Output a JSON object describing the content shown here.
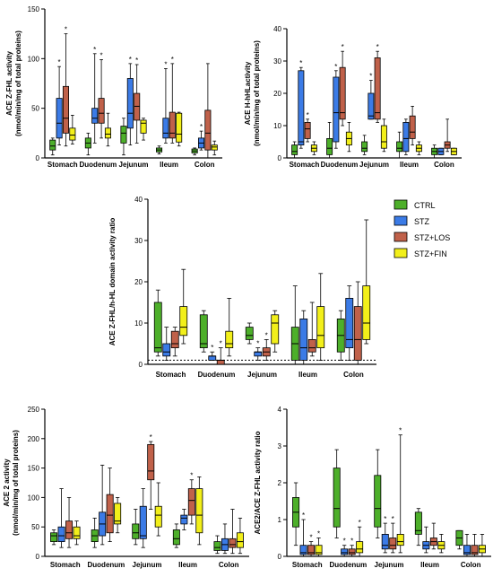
{
  "colors": {
    "CTRL": "#4daf2a",
    "STZ": "#3b7be6",
    "STZ+LOS": "#c0614a",
    "STZ+FIN": "#f2ef1a",
    "axis": "#000000",
    "star": "#000000"
  },
  "legend": {
    "entries": [
      {
        "name": "CTRL",
        "color": "#4daf2a"
      },
      {
        "name": "STZ",
        "color": "#3b7be6"
      },
      {
        "name": "STZ+LOS",
        "color": "#c0614a"
      },
      {
        "name": "STZ+FIN",
        "color": "#f2ef1a"
      }
    ]
  },
  "chart_data": [
    {
      "type": "boxplot",
      "ylabel": "ACE Z-FHL activity\n(nmol/min/mg of total proteins)",
      "ylim": [
        0,
        150
      ],
      "yticks": [
        0,
        50,
        100,
        150
      ],
      "categories": [
        "Stomach",
        "Duodenum",
        "Jejunum",
        "Ileum",
        "Colon"
      ],
      "series": [
        {
          "name": "CTRL",
          "boxes": [
            [
              3,
              8,
              12,
              18,
              20
            ],
            [
              3,
              10,
              15,
              20,
              25
            ],
            [
              3,
              15,
              25,
              32,
              40
            ],
            [
              4,
              6,
              8,
              10,
              12
            ],
            [
              3,
              5,
              7,
              9,
              10
            ]
          ]
        },
        {
          "name": "STZ",
          "boxes": [
            [
              13,
              20,
              35,
              60,
              92
            ],
            [
              15,
              35,
              40,
              50,
              105
            ],
            [
              13,
              30,
              45,
              80,
              95
            ],
            [
              15,
              20,
              25,
              40,
              90
            ],
            [
              8,
              10,
              15,
              20,
              27
            ]
          ]
        },
        {
          "name": "STZ+LOS",
          "boxes": [
            [
              12,
              25,
              40,
              72,
              125
            ],
            [
              20,
              35,
              45,
              60,
              99
            ],
            [
              15,
              38,
              52,
              65,
              94
            ],
            [
              15,
              20,
              25,
              46,
              95
            ],
            [
              0,
              8,
              25,
              48,
              95
            ]
          ]
        },
        {
          "name": "STZ+FIN",
          "boxes": [
            [
              14,
              18,
              23,
              30,
              43
            ],
            [
              12,
              20,
              24,
              30,
              45
            ],
            [
              18,
              25,
              35,
              38,
              40
            ],
            [
              12,
              16,
              24,
              45,
              46
            ],
            [
              3,
              8,
              11,
              13,
              17
            ]
          ]
        }
      ],
      "significance": [
        {
          "category": "Stomach",
          "series": "STZ"
        },
        {
          "category": "Stomach",
          "series": "STZ+LOS"
        },
        {
          "category": "Duodenum",
          "series": "STZ"
        },
        {
          "category": "Duodenum",
          "series": "STZ+LOS"
        },
        {
          "category": "Jejunum",
          "series": "STZ"
        },
        {
          "category": "Jejunum",
          "series": "STZ+LOS"
        },
        {
          "category": "Ileum",
          "series": "STZ"
        },
        {
          "category": "Ileum",
          "series": "STZ+LOS"
        },
        {
          "category": "Colon",
          "series": "STZ"
        }
      ]
    },
    {
      "type": "boxplot",
      "ylabel": "ACE H-hHLactivity\n(nmol/min/mg of total proteins)",
      "ylim": [
        0,
        40
      ],
      "yticks": [
        0,
        10,
        20,
        30,
        40
      ],
      "categories": [
        "Stomach",
        "Duodenum",
        "Jejunum",
        "Ileum",
        "Colon"
      ],
      "series": [
        {
          "name": "CTRL",
          "boxes": [
            [
              0,
              1,
              2,
              4,
              5
            ],
            [
              0,
              1,
              3,
              6,
              11
            ],
            [
              1,
              2,
              3,
              5,
              7
            ],
            [
              0,
              2,
              3,
              5,
              8
            ],
            [
              0,
              1,
              2,
              3,
              4
            ]
          ]
        },
        {
          "name": "STZ",
          "boxes": [
            [
              3,
              4,
              5,
              27,
              28
            ],
            [
              3,
              5,
              14,
              25,
              27
            ],
            [
              12,
              12,
              13,
              20,
              24
            ],
            [
              1,
              2,
              6,
              11,
              12
            ],
            [
              1,
              1,
              2,
              3,
              3
            ]
          ]
        },
        {
          "name": "STZ+LOS",
          "boxes": [
            [
              5,
              6,
              9,
              11,
              12
            ],
            [
              10,
              12,
              14,
              28,
              33
            ],
            [
              11,
              12,
              14,
              31,
              33
            ],
            [
              4,
              6,
              8,
              13,
              16
            ],
            [
              2,
              3,
              4,
              5,
              12
            ]
          ]
        },
        {
          "name": "STZ+FIN",
          "boxes": [
            [
              1,
              2,
              3,
              4,
              5
            ],
            [
              2,
              4,
              6,
              8,
              11
            ],
            [
              2,
              3,
              5,
              10,
              12
            ],
            [
              1,
              2,
              3,
              4,
              5
            ],
            [
              1,
              1,
              2,
              3,
              3
            ]
          ]
        }
      ],
      "significance": [
        {
          "category": "Stomach",
          "series": "STZ"
        },
        {
          "category": "Stomach",
          "series": "STZ+LOS"
        },
        {
          "category": "Duodenum",
          "series": "STZ"
        },
        {
          "category": "Duodenum",
          "series": "STZ+LOS"
        },
        {
          "category": "Jejunum",
          "series": "STZ"
        },
        {
          "category": "Jejunum",
          "series": "STZ+LOS"
        }
      ]
    },
    {
      "type": "boxplot",
      "ylabel": "ACE Z-FHL/h-HL domain activity ratio",
      "ylim": [
        0,
        40
      ],
      "yticks": [
        0,
        10,
        20,
        30,
        40
      ],
      "reference_line": 1,
      "categories": [
        "Stomach",
        "Duodenum",
        "Jejunum",
        "Ileum",
        "Colon"
      ],
      "series": [
        {
          "name": "CTRL",
          "boxes": [
            [
              2,
              3,
              4,
              15,
              18
            ],
            [
              3,
              4,
              5,
              12,
              13
            ],
            [
              5,
              6,
              7,
              9,
              10
            ],
            [
              0,
              1,
              5,
              9,
              19
            ],
            [
              1,
              3,
              7,
              11,
              13
            ]
          ]
        },
        {
          "name": "STZ",
          "boxes": [
            [
              1,
              2,
              3,
              5,
              9
            ],
            [
              1,
              1,
              2,
              2,
              3
            ],
            [
              1,
              2,
              3,
              3,
              4
            ],
            [
              0,
              1,
              4,
              11,
              13
            ],
            [
              1,
              4,
              6,
              16,
              19
            ]
          ]
        },
        {
          "name": "STZ+LOS",
          "boxes": [
            [
              2,
              4,
              5,
              8,
              9
            ],
            [
              0,
              0,
              1,
              1,
              4
            ],
            [
              1,
              2,
              3,
              4,
              6
            ],
            [
              2,
              3,
              4,
              6,
              15
            ],
            [
              0,
              1,
              6,
              14,
              20
            ]
          ]
        },
        {
          "name": "STZ+FIN",
          "boxes": [
            [
              5,
              7,
              9,
              14,
              23
            ],
            [
              2,
              4,
              5,
              8,
              16
            ],
            [
              3,
              5,
              10,
              12,
              13
            ],
            [
              1,
              4,
              7,
              14,
              22
            ],
            [
              5,
              6,
              10,
              19,
              35
            ]
          ]
        }
      ],
      "significance": [
        {
          "category": "Duodenum",
          "series": "STZ"
        },
        {
          "category": "Duodenum",
          "series": "STZ+LOS"
        },
        {
          "category": "Jejunum",
          "series": "STZ"
        },
        {
          "category": "Jejunum",
          "series": "STZ+LOS"
        }
      ]
    },
    {
      "type": "boxplot",
      "ylabel": "ACE 2 activity\n(nmol/min/mg of total proteins)",
      "ylim": [
        0,
        250
      ],
      "yticks": [
        0,
        50,
        100,
        150,
        200,
        250
      ],
      "categories": [
        "Stomach",
        "Duodenum",
        "Jejunum",
        "Ileum",
        "Colon"
      ],
      "series": [
        {
          "name": "CTRL",
          "boxes": [
            [
              20,
              25,
              35,
              40,
              45
            ],
            [
              15,
              25,
              35,
              45,
              65
            ],
            [
              20,
              30,
              40,
              55,
              80
            ],
            [
              15,
              20,
              30,
              45,
              55
            ],
            [
              5,
              10,
              15,
              25,
              35
            ]
          ]
        },
        {
          "name": "STZ",
          "boxes": [
            [
              15,
              25,
              35,
              50,
              115
            ],
            [
              20,
              35,
              55,
              75,
              155
            ],
            [
              15,
              30,
              35,
              85,
              115
            ],
            [
              45,
              55,
              65,
              70,
              80
            ],
            [
              5,
              10,
              20,
              30,
              55
            ]
          ]
        },
        {
          "name": "STZ+LOS",
          "boxes": [
            [
              15,
              30,
              40,
              60,
              100
            ],
            [
              25,
              40,
              70,
              105,
              150
            ],
            [
              80,
              130,
              145,
              190,
              195
            ],
            [
              55,
              70,
              95,
              115,
              130
            ],
            [
              5,
              15,
              20,
              30,
              80
            ]
          ]
        },
        {
          "name": "STZ+FIN",
          "boxes": [
            [
              20,
              30,
              35,
              50,
              60
            ],
            [
              40,
              55,
              60,
              90,
              100
            ],
            [
              35,
              50,
              70,
              85,
              125
            ],
            [
              20,
              40,
              70,
              115,
              135
            ],
            [
              5,
              15,
              25,
              40,
              65
            ]
          ]
        }
      ],
      "significance": [
        {
          "category": "Jejunum",
          "series": "STZ+LOS"
        },
        {
          "category": "Ileum",
          "series": "STZ+LOS"
        }
      ]
    },
    {
      "type": "boxplot",
      "ylabel": "ACE2/ACE Z-FHL activity ratio",
      "ylim": [
        0,
        4
      ],
      "yticks": [
        0,
        1,
        2,
        3,
        4
      ],
      "categories": [
        "Stomach",
        "Duodenum",
        "Jejunum",
        "Ileum",
        "Colon"
      ],
      "series": [
        {
          "name": "CTRL",
          "boxes": [
            [
              0.3,
              0.8,
              1.2,
              1.6,
              2.0
            ],
            [
              0.5,
              0.8,
              1.3,
              2.4,
              2.9
            ],
            [
              0.5,
              0.8,
              1.3,
              2.2,
              2.9
            ],
            [
              0.3,
              0.6,
              0.7,
              1.2,
              1.3
            ],
            [
              0.2,
              0.3,
              0.5,
              0.7,
              0.7
            ]
          ]
        },
        {
          "name": "STZ",
          "boxes": [
            [
              0.0,
              0.05,
              0.1,
              0.3,
              1.0
            ],
            [
              0.0,
              0.05,
              0.1,
              0.2,
              0.3
            ],
            [
              0.1,
              0.2,
              0.3,
              0.6,
              0.9
            ],
            [
              0.1,
              0.2,
              0.3,
              0.4,
              0.8
            ],
            [
              0.0,
              0.05,
              0.1,
              0.3,
              0.6
            ]
          ]
        },
        {
          "name": "STZ+LOS",
          "boxes": [
            [
              0.0,
              0.05,
              0.1,
              0.3,
              0.4
            ],
            [
              0.0,
              0.05,
              0.1,
              0.2,
              0.3
            ],
            [
              0.1,
              0.2,
              0.3,
              0.5,
              0.9
            ],
            [
              0.2,
              0.3,
              0.4,
              0.5,
              0.9
            ],
            [
              0.0,
              0.05,
              0.1,
              0.3,
              0.6
            ]
          ]
        },
        {
          "name": "STZ+FIN",
          "boxes": [
            [
              0.0,
              0.05,
              0.1,
              0.3,
              0.5
            ],
            [
              0.0,
              0.1,
              0.2,
              0.4,
              0.8
            ],
            [
              0.1,
              0.3,
              0.4,
              0.6,
              3.3
            ],
            [
              0.1,
              0.2,
              0.3,
              0.4,
              0.6
            ],
            [
              0.0,
              0.1,
              0.2,
              0.3,
              0.6
            ]
          ]
        }
      ],
      "significance": [
        {
          "category": "Stomach",
          "series": "STZ"
        },
        {
          "category": "Stomach",
          "series": "STZ+LOS"
        },
        {
          "category": "Stomach",
          "series": "STZ+FIN"
        },
        {
          "category": "Duodenum",
          "series": "STZ"
        },
        {
          "category": "Duodenum",
          "series": "STZ+LOS"
        },
        {
          "category": "Duodenum",
          "series": "STZ+FIN"
        },
        {
          "category": "Jejunum",
          "series": "STZ"
        },
        {
          "category": "Jejunum",
          "series": "STZ+LOS"
        },
        {
          "category": "Jejunum",
          "series": "STZ+FIN"
        }
      ]
    }
  ]
}
